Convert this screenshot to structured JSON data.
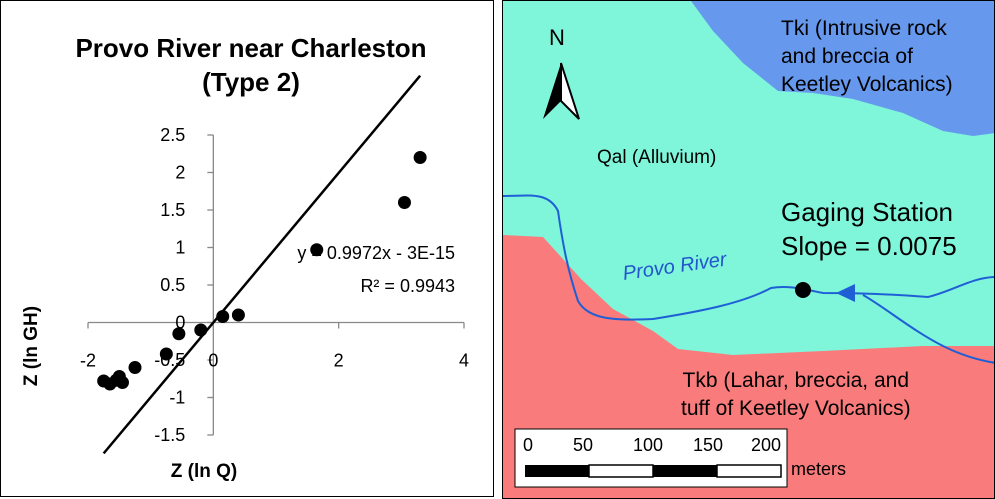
{
  "chart_data": {
    "type": "scatter",
    "title": "Provo River near Charleston (Type 2)",
    "xlabel": "Z (ln Q)",
    "ylabel": "Z (ln GH)",
    "xlim": [
      -2,
      4
    ],
    "ylim": [
      -1.5,
      2.5
    ],
    "x_ticks": [
      "-2",
      "0",
      "2",
      "4"
    ],
    "y_ticks": [
      "-1.5",
      "-1",
      "-0.5",
      "0",
      "0.5",
      "1",
      "1.5",
      "2",
      "2.5"
    ],
    "points": [
      {
        "x": -1.75,
        "y": -0.78
      },
      {
        "x": -1.65,
        "y": -0.82
      },
      {
        "x": -1.55,
        "y": -0.77
      },
      {
        "x": -1.5,
        "y": -0.72
      },
      {
        "x": -1.45,
        "y": -0.8
      },
      {
        "x": -1.25,
        "y": -0.6
      },
      {
        "x": -0.75,
        "y": -0.42
      },
      {
        "x": -0.55,
        "y": -0.15
      },
      {
        "x": -0.2,
        "y": -0.1
      },
      {
        "x": 0.15,
        "y": 0.08
      },
      {
        "x": 0.4,
        "y": 0.1
      },
      {
        "x": 1.65,
        "y": 0.97
      },
      {
        "x": 3.05,
        "y": 1.6
      },
      {
        "x": 3.3,
        "y": 2.2
      }
    ],
    "trendline": {
      "slope": 0.9972,
      "intercept": 0,
      "x_range": [
        -1.75,
        3.3
      ]
    },
    "equation": "y = 0.9972x - 3E-15",
    "r_squared": "R² = 0.9943",
    "grid": false
  },
  "map": {
    "tki_label_line1": "Tki (Intrusive rock",
    "tki_label_line2": "and breccia of",
    "tki_label_line3": "Keetley Volcanics)",
    "qal_label": "Qal (Alluvium)",
    "tkb_label_line1": "Tkb (Lahar, breccia, and",
    "tkb_label_line2": "tuff of Keetley Volcanics)",
    "gaging_line1": "Gaging Station",
    "gaging_line2": "Slope = 0.0075",
    "river_label": "Provo River",
    "north_label": "N",
    "scale_labels": [
      "0",
      "50",
      "100",
      "150",
      "200"
    ],
    "scale_unit": "meters",
    "colors": {
      "tki": "#6699ee",
      "qal": "#7ff5da",
      "tkb": "#fa7b7b",
      "river": "#1f5fd6"
    }
  }
}
